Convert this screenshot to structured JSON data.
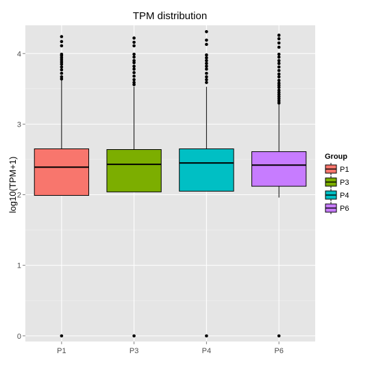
{
  "chart_data": {
    "type": "boxplot",
    "title": "TPM distribution",
    "xlabel": "",
    "ylabel": "log10(TPM+1)",
    "ylim": [
      -0.08,
      4.4
    ],
    "yticks": [
      0,
      1,
      2,
      3,
      4
    ],
    "ytick_labels": [
      "0",
      "1",
      "2",
      "3",
      "4"
    ],
    "categories": [
      "P1",
      "P3",
      "P4",
      "P6"
    ],
    "legend": {
      "title": "Group",
      "placement": "right",
      "items": [
        "P1",
        "P3",
        "P4",
        "P6"
      ]
    },
    "grid": true,
    "series": [
      {
        "name": "P1",
        "color": "#f8766d",
        "q1": 1.99,
        "median": 2.39,
        "q3": 2.65,
        "whisker_low": 1.99,
        "whisker_high": 3.62,
        "outliers": [
          0,
          3.64,
          3.67,
          3.72,
          3.77,
          3.81,
          3.85,
          3.88,
          3.91,
          3.94,
          3.97,
          3.99,
          4.11,
          4.17,
          4.24
        ]
      },
      {
        "name": "P3",
        "color": "#7cae00",
        "q1": 2.04,
        "median": 2.43,
        "q3": 2.64,
        "whisker_low": 2.04,
        "whisker_high": 3.53,
        "outliers": [
          0,
          3.56,
          3.59,
          3.63,
          3.68,
          3.73,
          3.78,
          3.82,
          3.87,
          3.9,
          3.95,
          3.99,
          4.11,
          4.16,
          4.22
        ]
      },
      {
        "name": "P4",
        "color": "#00bfc4",
        "q1": 2.05,
        "median": 2.45,
        "q3": 2.65,
        "whisker_low": 2.05,
        "whisker_high": 3.53,
        "outliers": [
          0,
          3.59,
          3.63,
          3.67,
          3.72,
          3.78,
          3.82,
          3.86,
          3.9,
          3.94,
          3.98,
          4.13,
          4.19,
          4.31
        ]
      },
      {
        "name": "P6",
        "color": "#c77cff",
        "q1": 2.12,
        "median": 2.42,
        "q3": 2.61,
        "whisker_low": 1.96,
        "whisker_high": 3.29,
        "outliers": [
          0,
          3.3,
          3.33,
          3.36,
          3.39,
          3.42,
          3.45,
          3.48,
          3.52,
          3.55,
          3.58,
          3.62,
          3.67,
          3.71,
          3.76,
          3.81,
          3.86,
          3.9,
          3.95,
          3.99,
          4.09,
          4.15,
          4.21,
          4.26
        ]
      }
    ]
  }
}
